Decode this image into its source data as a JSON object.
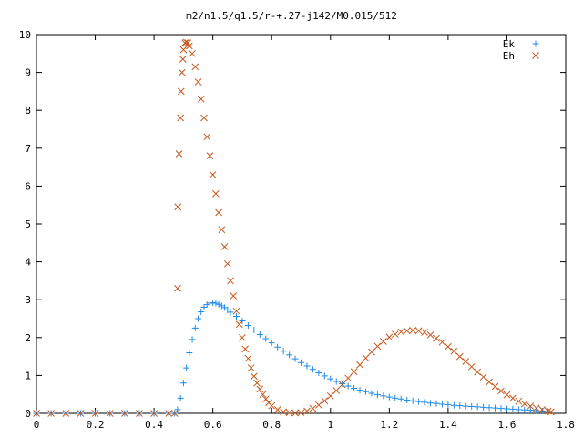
{
  "chart_data": {
    "type": "scatter",
    "title": "m2/n1.5/q1.5/r-+.27-j142/M0.015/512",
    "xlabel": "",
    "ylabel": "",
    "xlim": [
      0,
      1.8
    ],
    "ylim": [
      0,
      10
    ],
    "x_ticks": [
      "0",
      "0.2",
      "0.4",
      "0.6",
      "0.8",
      "1",
      "1.2",
      "1.4",
      "1.6",
      "1.8"
    ],
    "y_ticks": [
      "0",
      "1",
      "2",
      "3",
      "4",
      "5",
      "6",
      "7",
      "8",
      "9",
      "10"
    ],
    "legend_position": "top-right",
    "grid": false,
    "series": [
      {
        "name": "Ek",
        "marker": "plus",
        "color": "#1f8be8",
        "points": [
          [
            0.0,
            0
          ],
          [
            0.05,
            0
          ],
          [
            0.1,
            0
          ],
          [
            0.15,
            0
          ],
          [
            0.2,
            0
          ],
          [
            0.25,
            0
          ],
          [
            0.3,
            0
          ],
          [
            0.35,
            0
          ],
          [
            0.4,
            0
          ],
          [
            0.45,
            0
          ],
          [
            0.47,
            0
          ],
          [
            0.48,
            0.1
          ],
          [
            0.49,
            0.4
          ],
          [
            0.5,
            0.8
          ],
          [
            0.51,
            1.2
          ],
          [
            0.52,
            1.6
          ],
          [
            0.53,
            1.95
          ],
          [
            0.54,
            2.25
          ],
          [
            0.55,
            2.5
          ],
          [
            0.56,
            2.68
          ],
          [
            0.57,
            2.8
          ],
          [
            0.58,
            2.87
          ],
          [
            0.59,
            2.91
          ],
          [
            0.6,
            2.92
          ],
          [
            0.61,
            2.91
          ],
          [
            0.62,
            2.88
          ],
          [
            0.63,
            2.84
          ],
          [
            0.64,
            2.79
          ],
          [
            0.65,
            2.73
          ],
          [
            0.66,
            2.67
          ],
          [
            0.68,
            2.56
          ],
          [
            0.7,
            2.44
          ],
          [
            0.72,
            2.32
          ],
          [
            0.74,
            2.2
          ],
          [
            0.76,
            2.08
          ],
          [
            0.78,
            1.97
          ],
          [
            0.8,
            1.86
          ],
          [
            0.82,
            1.75
          ],
          [
            0.84,
            1.64
          ],
          [
            0.86,
            1.54
          ],
          [
            0.88,
            1.44
          ],
          [
            0.9,
            1.34
          ],
          [
            0.92,
            1.25
          ],
          [
            0.94,
            1.16
          ],
          [
            0.96,
            1.07
          ],
          [
            0.98,
            0.99
          ],
          [
            1.0,
            0.91
          ],
          [
            1.02,
            0.84
          ],
          [
            1.04,
            0.78
          ],
          [
            1.06,
            0.72
          ],
          [
            1.08,
            0.66
          ],
          [
            1.1,
            0.61
          ],
          [
            1.12,
            0.57
          ],
          [
            1.14,
            0.53
          ],
          [
            1.16,
            0.49
          ],
          [
            1.18,
            0.46
          ],
          [
            1.2,
            0.43
          ],
          [
            1.22,
            0.4
          ],
          [
            1.24,
            0.38
          ],
          [
            1.26,
            0.35
          ],
          [
            1.28,
            0.33
          ],
          [
            1.3,
            0.31
          ],
          [
            1.32,
            0.29
          ],
          [
            1.34,
            0.27
          ],
          [
            1.36,
            0.26
          ],
          [
            1.38,
            0.24
          ],
          [
            1.4,
            0.23
          ],
          [
            1.42,
            0.21
          ],
          [
            1.44,
            0.2
          ],
          [
            1.46,
            0.19
          ],
          [
            1.48,
            0.18
          ],
          [
            1.5,
            0.17
          ],
          [
            1.52,
            0.16
          ],
          [
            1.54,
            0.15
          ],
          [
            1.56,
            0.14
          ],
          [
            1.58,
            0.13
          ],
          [
            1.6,
            0.12
          ],
          [
            1.62,
            0.11
          ],
          [
            1.64,
            0.1
          ],
          [
            1.66,
            0.09
          ],
          [
            1.68,
            0.08
          ],
          [
            1.7,
            0.07
          ],
          [
            1.72,
            0.06
          ],
          [
            1.74,
            0.05
          ]
        ]
      },
      {
        "name": "Eh",
        "marker": "cross",
        "color": "#c8581e",
        "points": [
          [
            0.0,
            0
          ],
          [
            0.05,
            0
          ],
          [
            0.1,
            0
          ],
          [
            0.15,
            0
          ],
          [
            0.2,
            0
          ],
          [
            0.25,
            0
          ],
          [
            0.3,
            0
          ],
          [
            0.35,
            0
          ],
          [
            0.4,
            0
          ],
          [
            0.45,
            0
          ],
          [
            0.47,
            0
          ],
          [
            0.48,
            3.3
          ],
          [
            0.481,
            5.45
          ],
          [
            0.485,
            6.85
          ],
          [
            0.49,
            7.8
          ],
          [
            0.492,
            8.5
          ],
          [
            0.495,
            9.0
          ],
          [
            0.498,
            9.35
          ],
          [
            0.5,
            9.6
          ],
          [
            0.505,
            9.78
          ],
          [
            0.51,
            9.8
          ],
          [
            0.515,
            9.78
          ],
          [
            0.52,
            9.7
          ],
          [
            0.53,
            9.5
          ],
          [
            0.54,
            9.15
          ],
          [
            0.55,
            8.75
          ],
          [
            0.56,
            8.3
          ],
          [
            0.57,
            7.8
          ],
          [
            0.58,
            7.3
          ],
          [
            0.59,
            6.8
          ],
          [
            0.6,
            6.3
          ],
          [
            0.61,
            5.8
          ],
          [
            0.62,
            5.3
          ],
          [
            0.63,
            4.85
          ],
          [
            0.64,
            4.4
          ],
          [
            0.65,
            3.95
          ],
          [
            0.66,
            3.5
          ],
          [
            0.67,
            3.1
          ],
          [
            0.68,
            2.7
          ],
          [
            0.69,
            2.35
          ],
          [
            0.7,
            2.0
          ],
          [
            0.71,
            1.7
          ],
          [
            0.72,
            1.45
          ],
          [
            0.73,
            1.2
          ],
          [
            0.74,
            0.98
          ],
          [
            0.75,
            0.8
          ],
          [
            0.76,
            0.64
          ],
          [
            0.77,
            0.5
          ],
          [
            0.78,
            0.38
          ],
          [
            0.79,
            0.28
          ],
          [
            0.8,
            0.2
          ],
          [
            0.82,
            0.1
          ],
          [
            0.84,
            0.04
          ],
          [
            0.86,
            0.02
          ],
          [
            0.88,
            0.01
          ],
          [
            0.9,
            0.02
          ],
          [
            0.92,
            0.06
          ],
          [
            0.94,
            0.13
          ],
          [
            0.96,
            0.22
          ],
          [
            0.98,
            0.33
          ],
          [
            1.0,
            0.46
          ],
          [
            1.02,
            0.6
          ],
          [
            1.04,
            0.76
          ],
          [
            1.06,
            0.93
          ],
          [
            1.08,
            1.1
          ],
          [
            1.1,
            1.28
          ],
          [
            1.12,
            1.46
          ],
          [
            1.14,
            1.62
          ],
          [
            1.16,
            1.77
          ],
          [
            1.18,
            1.9
          ],
          [
            1.2,
            2.01
          ],
          [
            1.22,
            2.09
          ],
          [
            1.24,
            2.15
          ],
          [
            1.26,
            2.18
          ],
          [
            1.28,
            2.19
          ],
          [
            1.3,
            2.18
          ],
          [
            1.32,
            2.14
          ],
          [
            1.34,
            2.07
          ],
          [
            1.36,
            1.98
          ],
          [
            1.38,
            1.88
          ],
          [
            1.4,
            1.76
          ],
          [
            1.42,
            1.64
          ],
          [
            1.44,
            1.5
          ],
          [
            1.46,
            1.37
          ],
          [
            1.48,
            1.23
          ],
          [
            1.5,
            1.09
          ],
          [
            1.52,
            0.96
          ],
          [
            1.54,
            0.83
          ],
          [
            1.56,
            0.71
          ],
          [
            1.58,
            0.59
          ],
          [
            1.6,
            0.49
          ],
          [
            1.62,
            0.4
          ],
          [
            1.64,
            0.32
          ],
          [
            1.66,
            0.25
          ],
          [
            1.68,
            0.19
          ],
          [
            1.7,
            0.14
          ],
          [
            1.72,
            0.1
          ],
          [
            1.74,
            0.06
          ],
          [
            1.75,
            0.04
          ]
        ]
      }
    ]
  }
}
